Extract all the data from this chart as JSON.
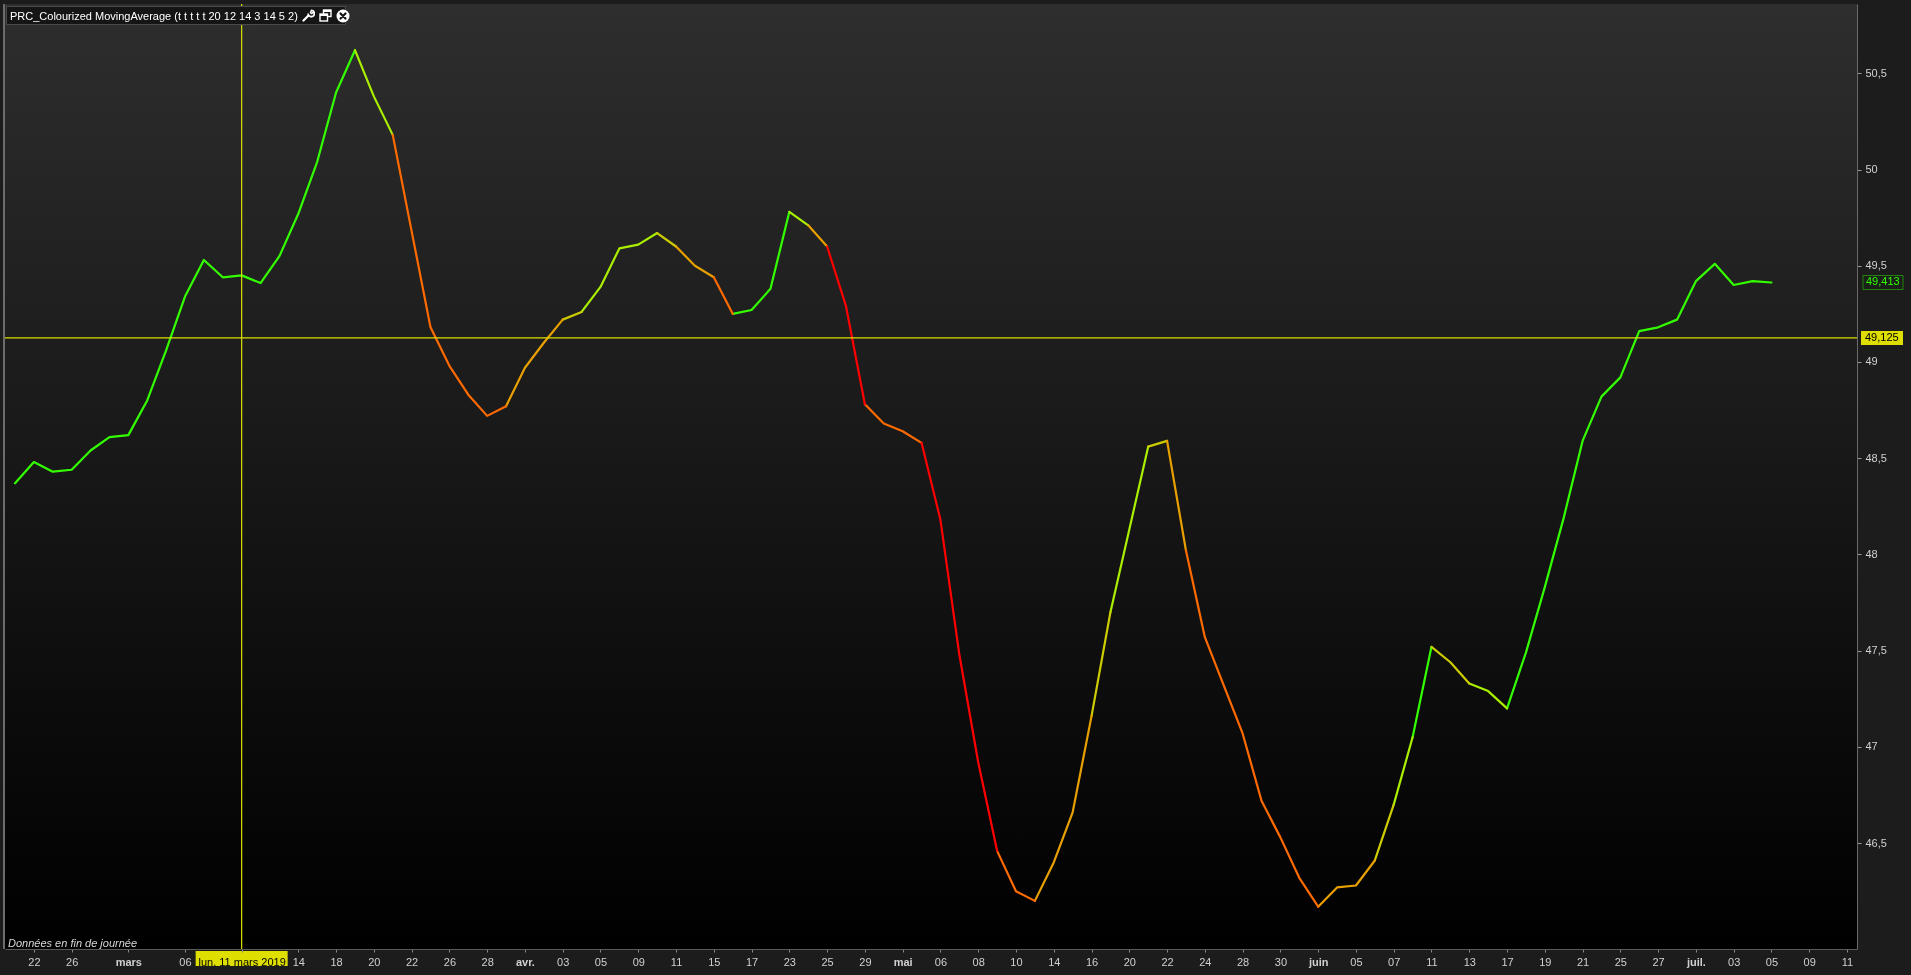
{
  "chart_data": {
    "type": "line",
    "title": "PRC_Colourized MovingAverage (t t t t t 20 12 14 3 14 5 2)",
    "categories": [
      null,
      "22",
      null,
      "26",
      null,
      null,
      "mars",
      null,
      null,
      "06",
      null,
      null,
      "lun. 11 mars 2019",
      null,
      null,
      "14",
      null,
      "18",
      null,
      "20",
      null,
      "22",
      null,
      "26",
      null,
      "28",
      null,
      "avr.",
      null,
      "03",
      null,
      "05",
      null,
      "09",
      null,
      "11",
      null,
      "15",
      null,
      "17",
      null,
      "23",
      null,
      "25",
      null,
      "29",
      null,
      "mai",
      null,
      "06",
      null,
      "08",
      null,
      "10",
      null,
      "14",
      null,
      "16",
      null,
      "20",
      null,
      "22",
      null,
      "24",
      null,
      "28",
      null,
      "30",
      null,
      "juin",
      null,
      "05",
      null,
      "07",
      null,
      "11",
      null,
      "13",
      null,
      "17",
      null,
      "19",
      null,
      "21",
      null,
      "25",
      null,
      "27",
      null,
      "juil.",
      null,
      "03",
      null,
      "05",
      null,
      "09",
      null,
      "11"
    ],
    "series": [
      {
        "color": "#33ff00",
        "values": [
          48.37,
          48.48,
          48.43,
          48.44,
          48.54,
          48.61,
          48.62,
          48.8,
          49.06,
          49.34,
          49.53,
          49.44,
          49.45,
          49.41,
          49.55,
          49.77,
          50.04,
          50.4,
          50.62,
          null,
          null,
          null,
          null,
          null,
          null,
          null,
          null,
          null,
          null,
          null,
          null,
          null,
          null,
          null,
          null,
          null,
          null,
          null,
          49.25,
          49.27,
          49.38,
          49.78,
          null,
          null,
          null,
          null,
          null,
          null,
          null,
          null,
          null,
          null,
          null,
          null,
          null,
          null,
          null,
          null,
          null,
          null,
          null,
          null,
          null,
          null,
          null,
          null,
          null,
          null,
          null,
          null,
          null,
          null,
          null,
          null,
          47.05,
          47.52,
          null,
          null,
          null,
          47.2,
          47.49,
          47.83,
          48.19,
          48.59,
          48.82,
          48.92,
          49.16,
          49.18,
          49.22,
          49.42,
          49.51,
          49.4,
          49.42,
          49.413,
          null,
          null,
          null,
          null
        ]
      },
      {
        "color": "#aaee00",
        "values": [
          null,
          null,
          null,
          null,
          null,
          null,
          null,
          null,
          null,
          null,
          null,
          null,
          null,
          null,
          null,
          null,
          null,
          null,
          50.62,
          50.38,
          50.18,
          null,
          null,
          null,
          null,
          null,
          null,
          null,
          null,
          null,
          49.26,
          49.39,
          49.59,
          49.61,
          49.67,
          null,
          null,
          null,
          null,
          null,
          null,
          49.78,
          49.71,
          null,
          null,
          null,
          null,
          null,
          null,
          null,
          null,
          null,
          null,
          null,
          null,
          null,
          null,
          null,
          47.7,
          48.13,
          48.56,
          null,
          null,
          null,
          null,
          null,
          null,
          null,
          null,
          null,
          null,
          null,
          null,
          46.7,
          47.05,
          null,
          null,
          47.33,
          47.29,
          47.2,
          null,
          null,
          null,
          null,
          null,
          null,
          null,
          null,
          null,
          null,
          null,
          null,
          null,
          null,
          null,
          null,
          null,
          null
        ]
      },
      {
        "color": "#cccc00",
        "values": [
          null,
          null,
          null,
          null,
          null,
          null,
          null,
          null,
          null,
          null,
          null,
          null,
          null,
          null,
          null,
          null,
          null,
          null,
          null,
          null,
          null,
          null,
          null,
          null,
          null,
          null,
          null,
          null,
          null,
          49.22,
          49.26,
          null,
          null,
          null,
          49.67,
          49.6,
          null,
          null,
          null,
          null,
          null,
          null,
          null,
          null,
          null,
          null,
          null,
          null,
          null,
          null,
          null,
          null,
          null,
          null,
          null,
          null,
          null,
          47.16,
          47.7,
          null,
          48.56,
          48.59,
          null,
          null,
          null,
          null,
          null,
          null,
          null,
          null,
          null,
          null,
          46.41,
          46.7,
          null,
          47.52,
          47.44,
          47.33,
          null,
          null,
          null,
          null,
          null,
          null,
          null,
          null,
          null,
          null,
          null,
          null,
          null,
          null,
          null,
          null,
          null,
          null,
          null,
          null
        ]
      },
      {
        "color": "#e8a000",
        "values": [
          null,
          null,
          null,
          null,
          null,
          null,
          null,
          null,
          null,
          null,
          null,
          null,
          null,
          null,
          null,
          null,
          null,
          null,
          null,
          null,
          null,
          null,
          null,
          null,
          null,
          null,
          48.77,
          48.97,
          49.1,
          49.22,
          null,
          null,
          null,
          null,
          null,
          49.6,
          49.5,
          49.44,
          null,
          null,
          null,
          null,
          49.71,
          49.6,
          null,
          null,
          null,
          null,
          null,
          null,
          null,
          null,
          null,
          null,
          46.2,
          46.4,
          46.66,
          47.16,
          null,
          null,
          null,
          48.59,
          48.02,
          null,
          null,
          null,
          null,
          null,
          null,
          46.17,
          46.27,
          46.28,
          46.41,
          null,
          null,
          null,
          null,
          null,
          null,
          null,
          null,
          null,
          null,
          null,
          null,
          null,
          null,
          null,
          null,
          null,
          null,
          null,
          null,
          null,
          null,
          null,
          null,
          null
        ]
      },
      {
        "color": "#ff6a00",
        "values": [
          null,
          null,
          null,
          null,
          null,
          null,
          null,
          null,
          null,
          null,
          null,
          null,
          null,
          null,
          null,
          null,
          null,
          null,
          null,
          null,
          50.18,
          49.68,
          49.18,
          48.98,
          48.83,
          48.72,
          48.77,
          null,
          null,
          null,
          null,
          null,
          null,
          null,
          null,
          null,
          null,
          49.44,
          49.25,
          null,
          null,
          null,
          null,
          null,
          null,
          48.78,
          48.68,
          48.64,
          48.58,
          null,
          null,
          null,
          46.46,
          46.25,
          46.2,
          null,
          null,
          null,
          null,
          null,
          null,
          null,
          48.02,
          47.57,
          47.32,
          47.07,
          46.72,
          46.53,
          46.32,
          46.17,
          null,
          null,
          null,
          null,
          null,
          null,
          null,
          null,
          null,
          null,
          null,
          null,
          null,
          null,
          null,
          null,
          null,
          null,
          null,
          null,
          null,
          null,
          null,
          null,
          null,
          null,
          null,
          null
        ]
      },
      {
        "color": "#ff0000",
        "values": [
          null,
          null,
          null,
          null,
          null,
          null,
          null,
          null,
          null,
          null,
          null,
          null,
          null,
          null,
          null,
          null,
          null,
          null,
          null,
          null,
          null,
          null,
          null,
          null,
          null,
          null,
          null,
          null,
          null,
          null,
          null,
          null,
          null,
          null,
          null,
          null,
          null,
          null,
          null,
          null,
          null,
          null,
          null,
          49.6,
          49.29,
          48.78,
          null,
          null,
          48.58,
          48.18,
          47.48,
          46.92,
          46.46,
          null,
          null,
          null,
          null,
          null,
          null,
          null,
          null,
          null,
          null,
          null,
          null,
          null,
          null,
          null,
          null,
          null,
          null,
          null,
          null,
          null,
          null,
          null,
          null,
          null,
          null,
          null,
          null,
          null,
          null,
          null,
          null,
          null,
          null,
          null,
          null,
          null,
          null,
          null,
          null,
          null,
          null,
          null,
          null,
          null
        ]
      }
    ],
    "ylim": [
      45.95,
      50.86
    ],
    "yticks": [
      {
        "value": 46.5,
        "label": "46,5"
      },
      47,
      {
        "value": 47.5,
        "label": "47,5"
      },
      48,
      {
        "value": 48.5,
        "label": "48,5"
      },
      49,
      {
        "value": 49.5,
        "label": "49,5"
      },
      50,
      {
        "value": 50.5,
        "label": "50,5"
      }
    ],
    "ref_lines": [
      {
        "axis": "y",
        "value": 49.125,
        "label": "49,125",
        "color": "#dede00"
      },
      {
        "axis": "x",
        "value": "lun. 11 mars 2019",
        "color": "#dede00"
      }
    ],
    "annotations": [
      "49,413",
      "Données en fin de journée"
    ]
  }
}
